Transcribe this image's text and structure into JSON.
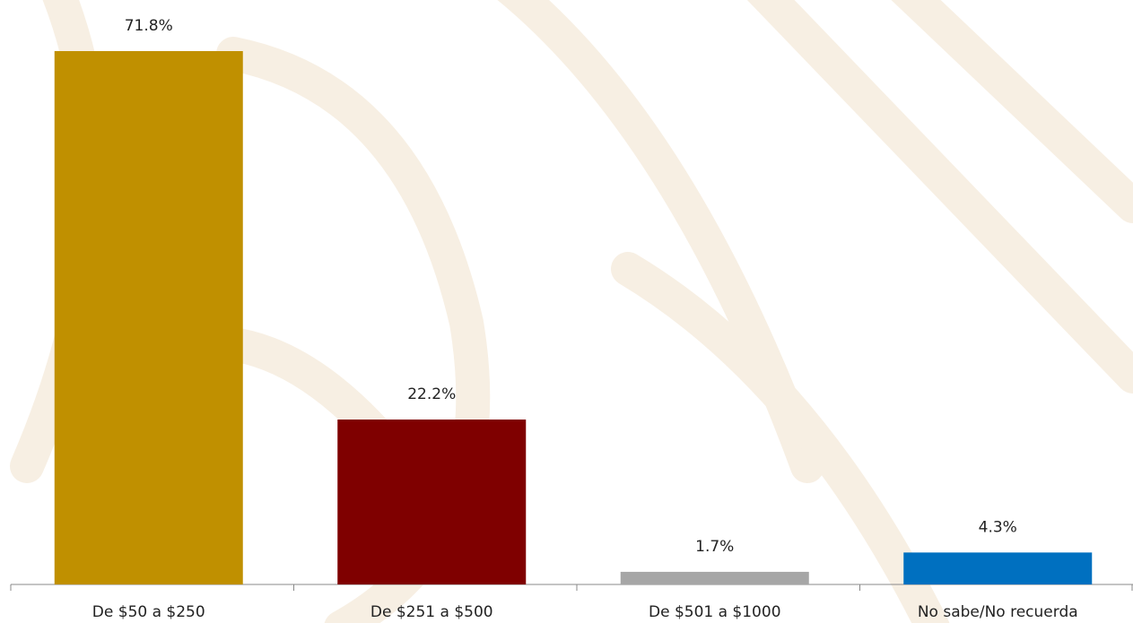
{
  "chart_data": {
    "type": "bar",
    "categories": [
      "De $50 a $250",
      "De $251 a $500",
      "De $501 a $1000",
      "No sabe/No recuerda"
    ],
    "values": [
      71.8,
      22.2,
      1.7,
      4.3
    ],
    "value_labels": [
      "71.8%",
      "22.2%",
      "1.7%",
      "4.3%"
    ],
    "colors": [
      "#c09000",
      "#7f0000",
      "#a6a6a6",
      "#0070c0"
    ]
  }
}
